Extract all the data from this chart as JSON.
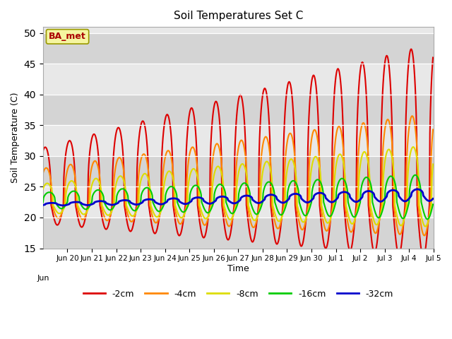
{
  "title": "Soil Temperatures Set C",
  "xlabel": "Time",
  "ylabel": "Soil Temperature (C)",
  "ylim": [
    15,
    51
  ],
  "yticks": [
    15,
    20,
    25,
    30,
    35,
    40,
    45,
    50
  ],
  "background_color": "#ffffff",
  "plot_bg_color": "#e8e8e8",
  "band_colors": [
    "#d4d4d4",
    "#e8e8e8",
    "#d4d4d4",
    "#e8e8e8",
    "#d4d4d4",
    "#e8e8e8",
    "#d4d4d4"
  ],
  "label_box": "BA_met",
  "label_box_bg": "#f5f5a0",
  "label_box_edge": "#999900",
  "label_box_text": "#aa0000",
  "series_colors": {
    "-2cm": "#dd0000",
    "-4cm": "#ff8800",
    "-8cm": "#dddd00",
    "-16cm": "#00cc00",
    "-32cm": "#0000cc"
  },
  "tick_labels": [
    "Jun 20",
    "Jun 21",
    "Jun 22",
    "Jun 23",
    "Jun 24",
    "Jun 25",
    "Jun 26",
    "Jun 27",
    "Jun 28",
    "Jun 29",
    "Jun 30",
    "Jul 1",
    "Jul 2",
    "Jul 3",
    "Jul 4",
    "Jul 5"
  ]
}
